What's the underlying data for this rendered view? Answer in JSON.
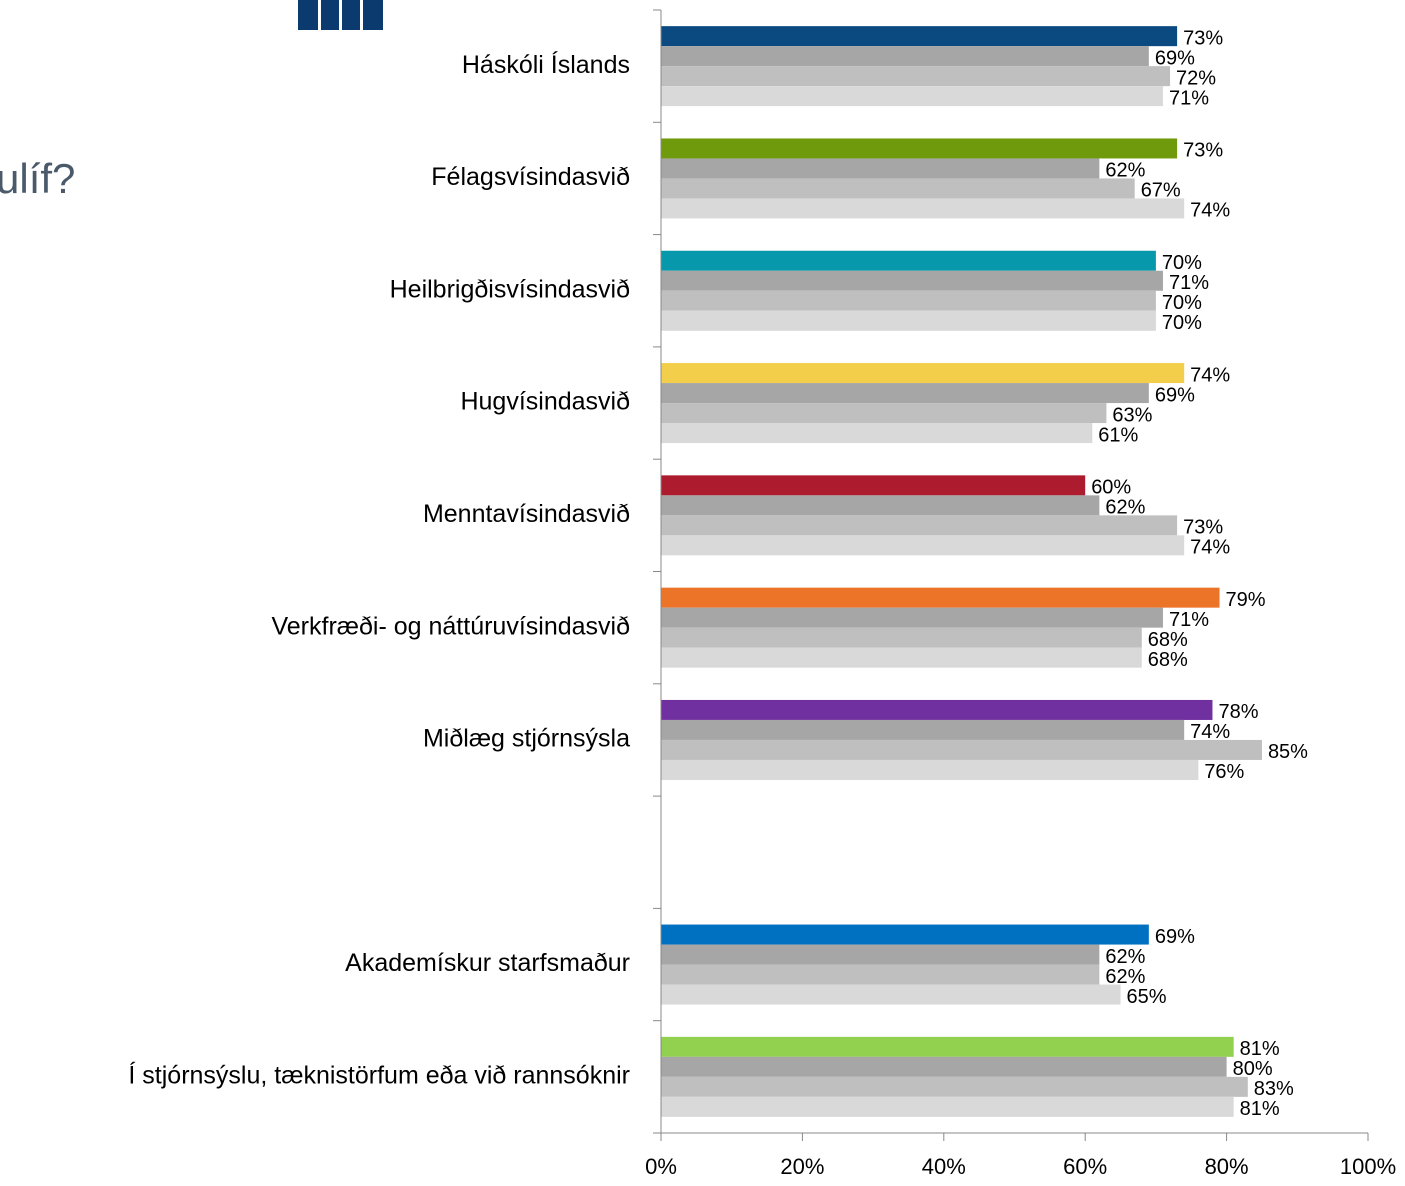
{
  "chart_data": {
    "type": "hbar",
    "title": "ulíf?",
    "categories": [
      "Háskóli Íslands",
      "Félagsvísindasvið",
      "Heilbrigðisvísindasvið",
      "Hugvísindasvið",
      "Menntavísindasvið",
      "Verkfræði- og náttúruvísindasvið",
      "Miðlæg stjórnsýsla",
      null,
      "Akademískur starfsmaður",
      "Í stjórnsýslu, tæknistörfum eða við rannsóknir"
    ],
    "series": [
      {
        "colors": [
          "#0b4a80",
          "#6f9a0c",
          "#0799ab",
          "#f3ce4a",
          "#ad1c2e",
          "#ec7429",
          "#7030a0",
          null,
          "#0070c0",
          "#92d050"
        ],
        "values": [
          73,
          73,
          70,
          74,
          60,
          79,
          78,
          null,
          69,
          81
        ],
        "value_labels": [
          "73%",
          "73%",
          "70%",
          "74%",
          "60%",
          "79%",
          "78%",
          null,
          "69%",
          "81%"
        ]
      },
      {
        "color": "#a6a6a6",
        "values": [
          69,
          62,
          71,
          69,
          62,
          71,
          74,
          null,
          62,
          80
        ],
        "value_labels": [
          "69%",
          "62%",
          "71%",
          "69%",
          "62%",
          "71%",
          "74%",
          null,
          "62%",
          "80%"
        ]
      },
      {
        "color": "#bfbfbf",
        "values": [
          72,
          67,
          70,
          63,
          73,
          68,
          85,
          null,
          62,
          83
        ],
        "value_labels": [
          "72%",
          "67%",
          "70%",
          "63%",
          "73%",
          "68%",
          "85%",
          null,
          "62%",
          "83%"
        ]
      },
      {
        "color": "#d9d9d9",
        "values": [
          71,
          74,
          70,
          61,
          74,
          68,
          76,
          null,
          65,
          81
        ],
        "value_labels": [
          "71%",
          "74%",
          "70%",
          "61%",
          "74%",
          "68%",
          "76%",
          null,
          "65%",
          "81%"
        ]
      }
    ],
    "xlim": [
      0,
      100
    ],
    "xticks": [
      {
        "value": 0,
        "label": "0%"
      },
      {
        "value": 20,
        "label": "20%"
      },
      {
        "value": 40,
        "label": "40%"
      },
      {
        "value": 60,
        "label": "60%"
      },
      {
        "value": 80,
        "label": "80%"
      },
      {
        "value": 100,
        "label": "100%"
      }
    ]
  }
}
